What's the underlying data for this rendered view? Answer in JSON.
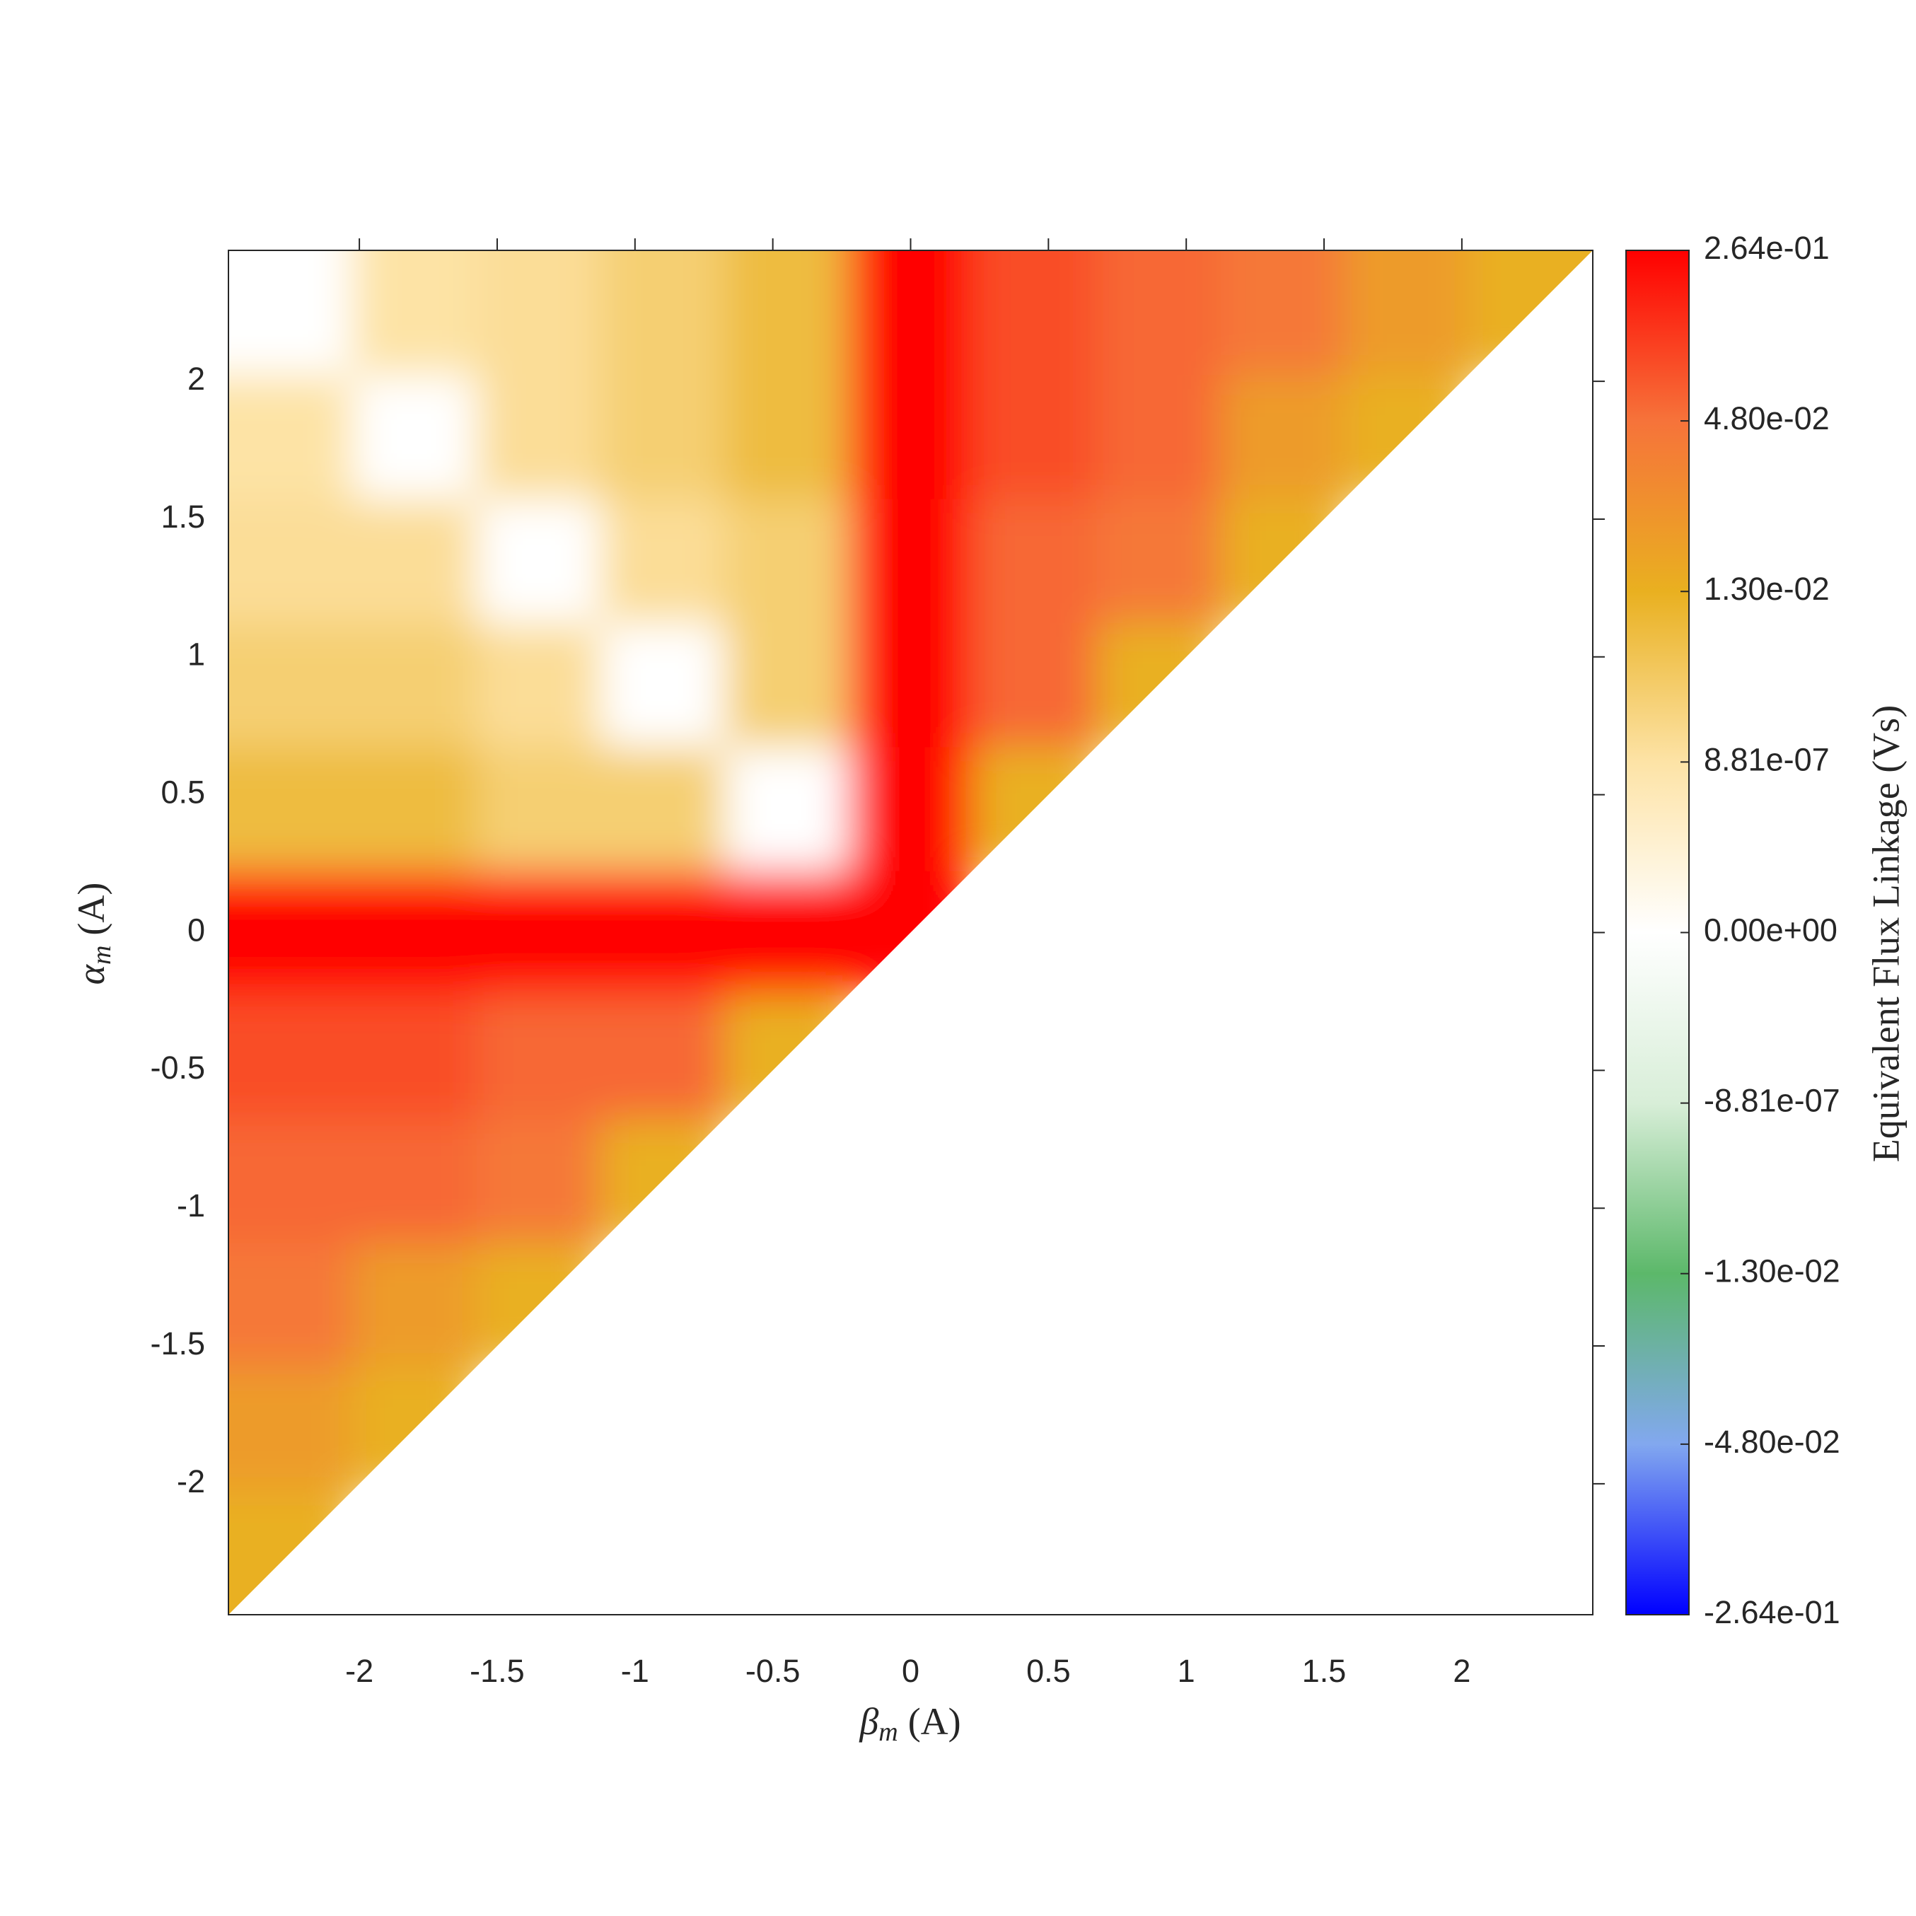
{
  "chart_data": {
    "type": "heatmap",
    "xlabel": {
      "symbol": "β",
      "sub": "m",
      "unit": "(A)"
    },
    "ylabel": {
      "symbol": "α",
      "sub": "m",
      "unit": "(A)"
    },
    "xlim": [
      -2.475,
      2.475
    ],
    "ylim": [
      -2.475,
      2.475
    ],
    "xticks": [
      -2,
      -1.5,
      -1,
      -0.5,
      0,
      0.5,
      1,
      1.5,
      2
    ],
    "yticks": [
      -2,
      -1.5,
      -1,
      -0.5,
      0,
      0.5,
      1,
      1.5,
      2
    ],
    "x": [
      -2.25,
      -1.8,
      -1.35,
      -0.9,
      -0.45,
      0,
      0.45,
      0.9,
      1.35,
      1.8,
      2.25
    ],
    "y": [
      -2.25,
      -1.8,
      -1.35,
      -0.9,
      -0.45,
      0,
      0.45,
      0.9,
      1.35,
      1.8,
      2.25
    ],
    "z": [
      [
        0.013,
        null,
        null,
        null,
        null,
        null,
        null,
        null,
        null,
        null,
        null
      ],
      [
        0.025,
        0.013,
        null,
        null,
        null,
        null,
        null,
        null,
        null,
        null,
        null
      ],
      [
        0.045,
        0.025,
        0.013,
        null,
        null,
        null,
        null,
        null,
        null,
        null,
        null
      ],
      [
        0.07,
        0.07,
        0.045,
        0.013,
        null,
        null,
        null,
        null,
        null,
        null,
        null
      ],
      [
        0.12,
        0.12,
        0.07,
        0.07,
        0.013,
        null,
        null,
        null,
        null,
        null,
        null
      ],
      [
        0.264,
        0.264,
        0.264,
        0.264,
        0.264,
        0.264,
        null,
        null,
        null,
        null,
        null
      ],
      [
        0.01,
        0.01,
        0.005,
        0.005,
        0,
        0.264,
        0.013,
        null,
        null,
        null,
        null
      ],
      [
        0.005,
        0.005,
        0.0015,
        0,
        0.005,
        0.264,
        0.07,
        0.013,
        null,
        null,
        null
      ],
      [
        0.0015,
        0.0015,
        0,
        0.0015,
        0.005,
        0.264,
        0.07,
        0.045,
        0.013,
        null,
        null
      ],
      [
        0.0001,
        0,
        0.0015,
        0.005,
        0.01,
        0.264,
        0.12,
        0.07,
        0.025,
        0.013,
        null
      ],
      [
        0,
        0.0001,
        0.0015,
        0.005,
        0.01,
        0.264,
        0.12,
        0.07,
        0.045,
        0.025,
        0.013
      ]
    ],
    "colorbar": {
      "label": "Equivalent Flux Linkage (Vs)",
      "ticks": [
        {
          "value": -0.264,
          "label": "-2.64e-01"
        },
        {
          "value": -0.048,
          "label": "-4.80e-02"
        },
        {
          "value": -0.013,
          "label": "-1.30e-02"
        },
        {
          "value": -8.81e-07,
          "label": "-8.81e-07"
        },
        {
          "value": 0,
          "label": "0.00e+00"
        },
        {
          "value": 8.81e-07,
          "label": "8.81e-07"
        },
        {
          "value": 0.013,
          "label": "1.30e-02"
        },
        {
          "value": 0.048,
          "label": "4.80e-02"
        },
        {
          "value": 0.264,
          "label": "2.64e-01"
        }
      ],
      "colors": [
        "#0000ff",
        "#82a8ef",
        "#5cb86a",
        "#d8eed8",
        "#ffffff",
        "#fde3a6",
        "#e9b020",
        "#f6733a",
        "#ff0000"
      ]
    }
  }
}
